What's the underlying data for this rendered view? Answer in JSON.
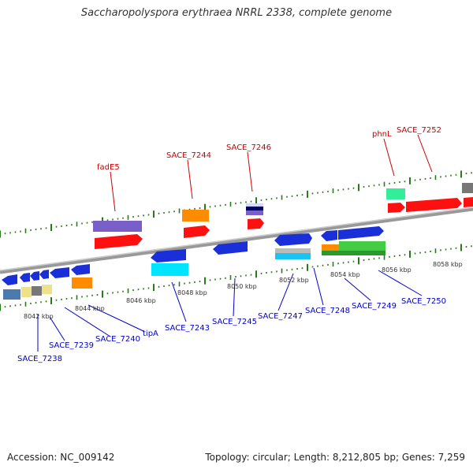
{
  "title": "Saccharopolyspora erythraea NRRL 2338, complete genome",
  "footer": {
    "accession": "Accession: NC_009142",
    "summary": "Topology: circular; Length: 8,212,805 bp; Genes: 7,259"
  },
  "colors": {
    "backbone": "#888888",
    "tick": "#2a7a1a",
    "label_top": "#cc0000",
    "label_bottom": "#0000cc"
  },
  "kbp_ticks": [
    "8042 kbp",
    "8044 kbp",
    "8046 kbp",
    "8048 kbp",
    "8050 kbp",
    "8052 kbp",
    "8054 kbp",
    "8056 kbp",
    "8058 kbp"
  ],
  "top_labels": [
    "fadE5",
    "SACE_7244",
    "SACE_7246",
    "phnL",
    "SACE_7252"
  ],
  "bottom_labels": [
    "SACE_7238",
    "SACE_7239",
    "SACE_7240",
    "tipA",
    "SACE_7243",
    "SACE_7245",
    "SACE_7247",
    "SACE_7248",
    "SACE_7249",
    "SACE_7250"
  ]
}
